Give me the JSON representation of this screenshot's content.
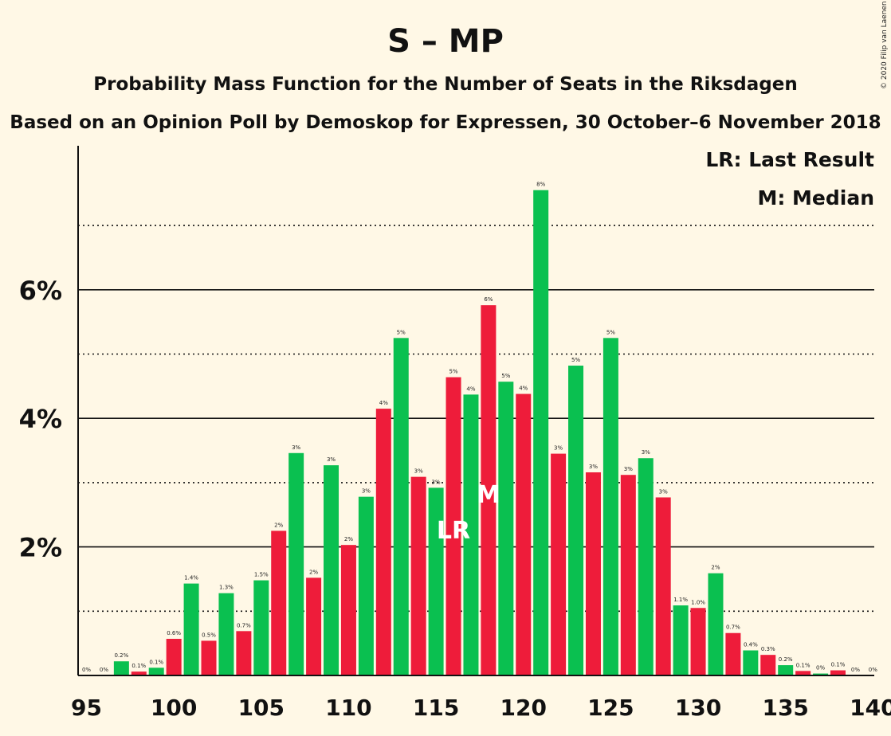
{
  "chart_data": {
    "type": "bar",
    "title": "S – MP",
    "subtitle1": "Probability Mass Function for the Number of Seats in the Riksdagen",
    "subtitle2": "Based on an Opinion Poll by Demoskop for Expressen, 30 October–6 November 2018",
    "copyright": "© 2020 Filip van Laenen",
    "legend": {
      "lr": "LR: Last Result",
      "m": "M: Median",
      "placement": "top-right"
    },
    "xlim": [
      95,
      140
    ],
    "ylim": [
      0,
      8
    ],
    "xticks": [
      95,
      100,
      105,
      110,
      115,
      120,
      125,
      130,
      135,
      140
    ],
    "yticks": [
      {
        "value": 2,
        "label": "2%"
      },
      {
        "value": 4,
        "label": "4%"
      },
      {
        "value": 6,
        "label": "6%"
      }
    ],
    "gridlines": {
      "solid": [
        2,
        4,
        6
      ],
      "dotted": [
        1,
        3,
        5,
        7
      ]
    },
    "colors": {
      "even": "#ee1c3a",
      "odd": "#0ac050",
      "background": "#fff8e6"
    },
    "last_result": {
      "seat": 116,
      "label": "LR"
    },
    "median": {
      "seat": 118,
      "label": "M"
    },
    "bars": [
      {
        "x": 95,
        "value": 0.0,
        "label": "0%"
      },
      {
        "x": 96,
        "value": 0.0,
        "label": "0%"
      },
      {
        "x": 97,
        "value": 0.22,
        "label": "0.2%"
      },
      {
        "x": 98,
        "value": 0.06,
        "label": "0.1%"
      },
      {
        "x": 99,
        "value": 0.12,
        "label": "0.1%"
      },
      {
        "x": 100,
        "value": 0.57,
        "label": "0.6%"
      },
      {
        "x": 101,
        "value": 1.43,
        "label": "1.4%"
      },
      {
        "x": 102,
        "value": 0.54,
        "label": "0.5%"
      },
      {
        "x": 103,
        "value": 1.28,
        "label": "1.3%"
      },
      {
        "x": 104,
        "value": 0.69,
        "label": "0.7%"
      },
      {
        "x": 105,
        "value": 1.48,
        "label": "1.5%"
      },
      {
        "x": 106,
        "value": 2.25,
        "label": "2%"
      },
      {
        "x": 107,
        "value": 3.46,
        "label": "3%"
      },
      {
        "x": 108,
        "value": 1.52,
        "label": "2%"
      },
      {
        "x": 109,
        "value": 3.27,
        "label": "3%"
      },
      {
        "x": 110,
        "value": 2.03,
        "label": "2%"
      },
      {
        "x": 111,
        "value": 2.78,
        "label": "3%"
      },
      {
        "x": 112,
        "value": 4.15,
        "label": "4%"
      },
      {
        "x": 113,
        "value": 5.25,
        "label": "5%"
      },
      {
        "x": 114,
        "value": 3.09,
        "label": "3%"
      },
      {
        "x": 115,
        "value": 2.92,
        "label": "3%"
      },
      {
        "x": 116,
        "value": 4.64,
        "label": "5%"
      },
      {
        "x": 117,
        "value": 4.37,
        "label": "4%"
      },
      {
        "x": 118,
        "value": 5.76,
        "label": "6%"
      },
      {
        "x": 119,
        "value": 4.57,
        "label": "5%"
      },
      {
        "x": 120,
        "value": 4.38,
        "label": "4%"
      },
      {
        "x": 121,
        "value": 7.55,
        "label": "8%"
      },
      {
        "x": 122,
        "value": 3.45,
        "label": "3%"
      },
      {
        "x": 123,
        "value": 4.82,
        "label": "5%"
      },
      {
        "x": 124,
        "value": 3.16,
        "label": "3%"
      },
      {
        "x": 125,
        "value": 5.25,
        "label": "5%"
      },
      {
        "x": 126,
        "value": 3.12,
        "label": "3%"
      },
      {
        "x": 127,
        "value": 3.38,
        "label": "3%"
      },
      {
        "x": 128,
        "value": 2.77,
        "label": "3%"
      },
      {
        "x": 129,
        "value": 1.09,
        "label": "1.1%"
      },
      {
        "x": 130,
        "value": 1.05,
        "label": "1.0%"
      },
      {
        "x": 131,
        "value": 1.59,
        "label": "2%"
      },
      {
        "x": 132,
        "value": 0.66,
        "label": "0.7%"
      },
      {
        "x": 133,
        "value": 0.39,
        "label": "0.4%"
      },
      {
        "x": 134,
        "value": 0.32,
        "label": "0.3%"
      },
      {
        "x": 135,
        "value": 0.16,
        "label": "0.2%"
      },
      {
        "x": 136,
        "value": 0.07,
        "label": "0.1%"
      },
      {
        "x": 137,
        "value": 0.03,
        "label": "0%"
      },
      {
        "x": 138,
        "value": 0.08,
        "label": "0.1%"
      },
      {
        "x": 139,
        "value": 0.0,
        "label": "0%"
      },
      {
        "x": 140,
        "value": 0.0,
        "label": "0%"
      }
    ]
  }
}
